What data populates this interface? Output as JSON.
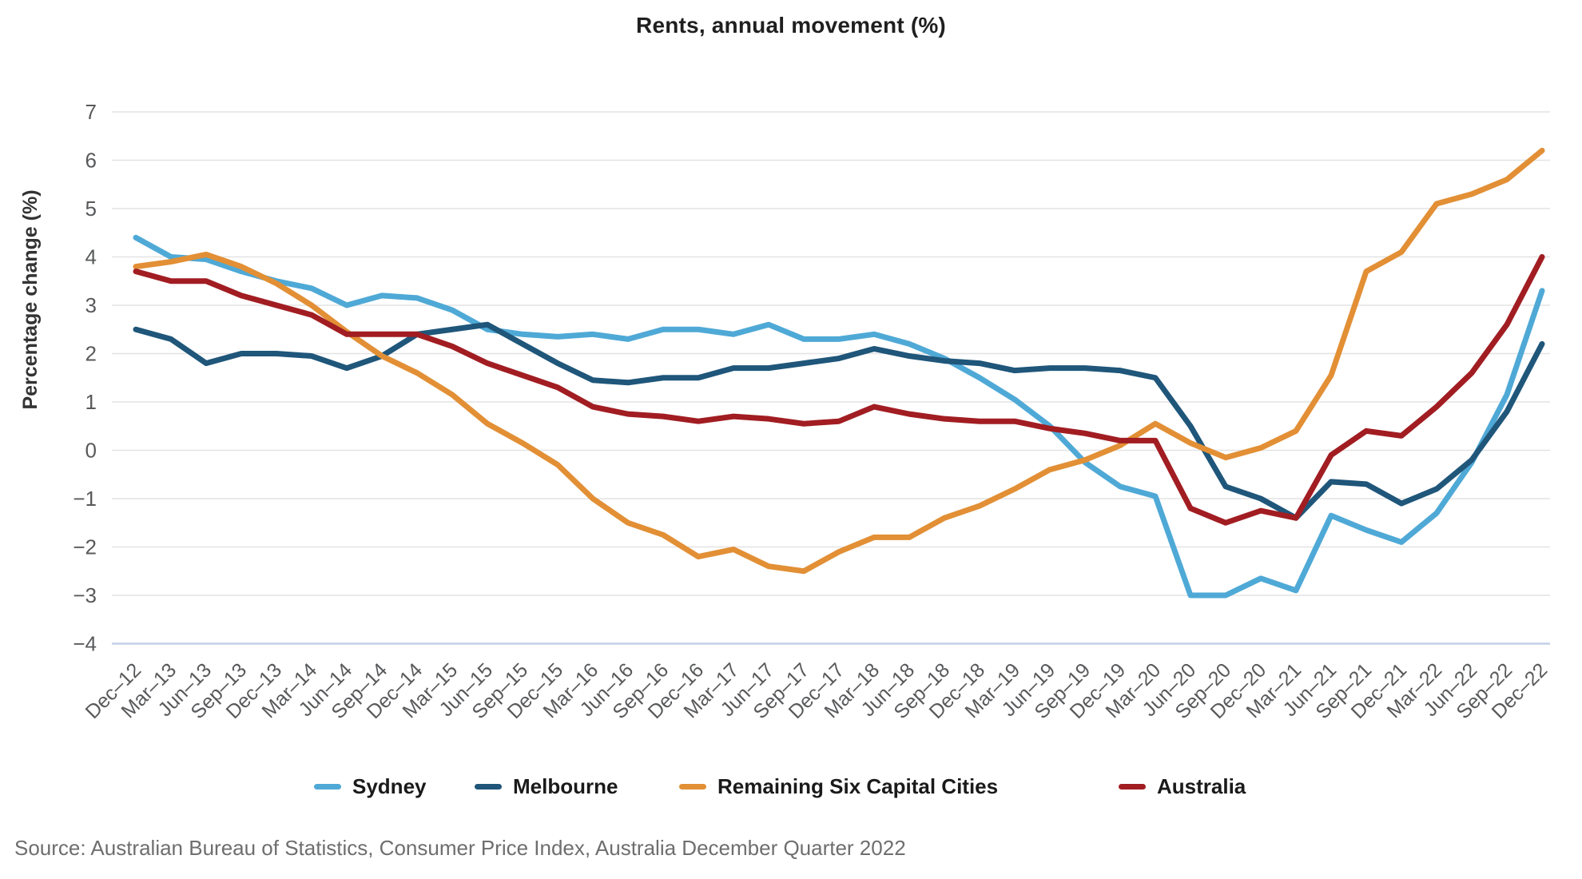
{
  "title": "Rents, annual movement (%)",
  "source": "Source: Australian Bureau of Statistics, Consumer Price Index, Australia December Quarter 2022",
  "legend": {
    "items": [
      {
        "label": "Sydney",
        "color": "#4FA9D6"
      },
      {
        "label": "Melbourne",
        "color": "#1F567A"
      },
      {
        "label": "Remaining Six Capital Cities",
        "color": "#E28F35"
      },
      {
        "label": "Australia",
        "color": "#A11D22"
      }
    ]
  },
  "chart_data": {
    "type": "line",
    "title": "Rents, annual movement (%)",
    "xlabel": "",
    "ylabel": "Percentage change (%)",
    "ylim": [
      -4,
      7
    ],
    "grid": "horizontal",
    "legend_position": "bottom",
    "y_ticks": [
      7,
      6,
      5,
      4,
      3,
      2,
      1,
      0,
      -1,
      -2,
      -3,
      -4
    ],
    "y_tick_labels": [
      "7",
      "6",
      "5",
      "4",
      "3",
      "2",
      "1",
      "0",
      "−1",
      "−2",
      "−3",
      "−4"
    ],
    "categories": [
      "Dec–12",
      "Mar–13",
      "Jun–13",
      "Sep–13",
      "Dec–13",
      "Mar–14",
      "Jun–14",
      "Sep–14",
      "Dec–14",
      "Mar–15",
      "Jun–15",
      "Sep–15",
      "Dec–15",
      "Mar–16",
      "Jun–16",
      "Sep–16",
      "Dec–16",
      "Mar–17",
      "Jun–17",
      "Sep–17",
      "Dec–17",
      "Mar–18",
      "Jun–18",
      "Sep–18",
      "Dec–18",
      "Mar–19",
      "Jun–19",
      "Sep–19",
      "Dec–19",
      "Mar–20",
      "Jun–20",
      "Sep–20",
      "Dec–20",
      "Mar–21",
      "Jun–21",
      "Sep–21",
      "Dec–21",
      "Mar–22",
      "Jun–22",
      "Sep–22",
      "Dec–22"
    ],
    "series": [
      {
        "name": "Sydney",
        "color": "#4FA9D6",
        "values": [
          4.4,
          4.0,
          3.95,
          3.7,
          3.5,
          3.35,
          3.0,
          3.2,
          3.15,
          2.9,
          2.5,
          2.4,
          2.35,
          2.4,
          2.3,
          2.5,
          2.5,
          2.4,
          2.6,
          2.3,
          2.3,
          2.4,
          2.2,
          1.9,
          1.5,
          1.05,
          0.5,
          -0.25,
          -0.75,
          -0.95,
          -3.0,
          -3.0,
          -2.65,
          -2.9,
          -1.35,
          -1.65,
          -1.9,
          -1.3,
          -0.25,
          1.15,
          3.3
        ]
      },
      {
        "name": "Melbourne",
        "color": "#1F567A",
        "values": [
          2.5,
          2.3,
          1.8,
          2.0,
          2.0,
          1.95,
          1.7,
          1.95,
          2.4,
          2.5,
          2.6,
          2.2,
          1.8,
          1.45,
          1.4,
          1.5,
          1.5,
          1.7,
          1.7,
          1.8,
          1.9,
          2.1,
          1.95,
          1.85,
          1.8,
          1.65,
          1.7,
          1.7,
          1.65,
          1.5,
          0.5,
          -0.75,
          -1.0,
          -1.4,
          -0.65,
          -0.7,
          -1.1,
          -0.8,
          -0.2,
          0.8,
          2.2
        ]
      },
      {
        "name": "Remaining Six Capital Cities",
        "color": "#E28F35",
        "values": [
          3.8,
          3.9,
          4.05,
          3.8,
          3.45,
          3.0,
          2.45,
          1.95,
          1.6,
          1.15,
          0.55,
          0.15,
          -0.3,
          -1.0,
          -1.5,
          -1.75,
          -2.2,
          -2.05,
          -2.4,
          -2.5,
          -2.1,
          -1.8,
          -1.8,
          -1.4,
          -1.15,
          -0.8,
          -0.4,
          -0.2,
          0.1,
          0.55,
          0.15,
          -0.15,
          0.05,
          0.4,
          1.55,
          3.7,
          4.1,
          5.1,
          5.3,
          5.6,
          6.2
        ]
      },
      {
        "name": "Australia",
        "color": "#A11D22",
        "values": [
          3.7,
          3.5,
          3.5,
          3.2,
          3.0,
          2.8,
          2.4,
          2.4,
          2.4,
          2.15,
          1.8,
          1.55,
          1.3,
          0.9,
          0.75,
          0.7,
          0.6,
          0.7,
          0.65,
          0.55,
          0.6,
          0.9,
          0.75,
          0.65,
          0.6,
          0.6,
          0.45,
          0.35,
          0.2,
          0.2,
          -1.2,
          -1.5,
          -1.25,
          -1.4,
          -0.1,
          0.4,
          0.3,
          0.9,
          1.6,
          2.6,
          4.0
        ]
      }
    ]
  },
  "style": {
    "gridline_color": "#e3e3e3",
    "axis_line_color": "#c2d1e8",
    "tick_label_color": "#58595b",
    "axis_title_color": "#333333",
    "line_width": 7
  }
}
